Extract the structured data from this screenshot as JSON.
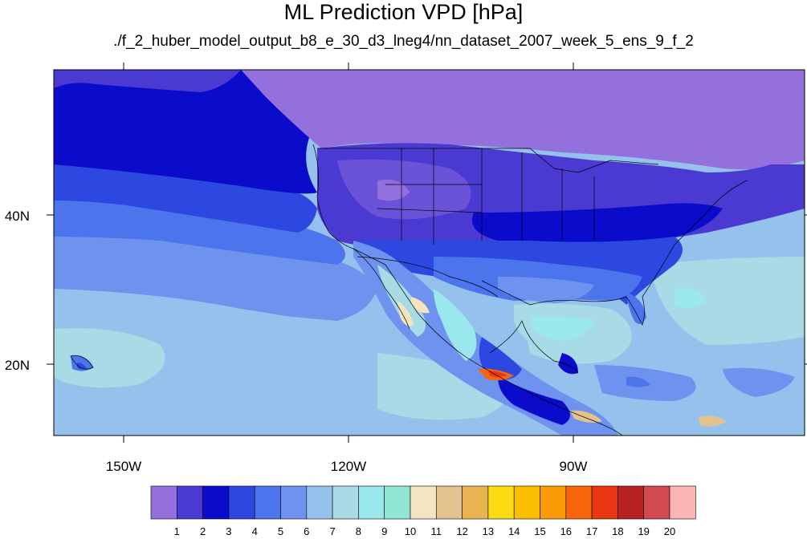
{
  "title": "ML Prediction VPD [hPa]",
  "subtitle": "./f_2_huber_model_output_b8_e_30_d3_lneg4/nn_dataset_2007_week_5_ens_9_f_2",
  "map": {
    "lon_labels": [
      "150W",
      "120W",
      "90W"
    ],
    "lat_labels": [
      "40N",
      "20N"
    ]
  },
  "colorbar": {
    "labels": [
      "1",
      "2",
      "3",
      "4",
      "5",
      "6",
      "7",
      "8",
      "9",
      "10",
      "11",
      "12",
      "13",
      "14",
      "15",
      "16",
      "17",
      "18",
      "19",
      "20"
    ],
    "colors": [
      "#9370db",
      "#4b3ad1",
      "#0b0bcb",
      "#2c48e0",
      "#4c74ec",
      "#6e93ef",
      "#94c2ec",
      "#a8dbe6",
      "#9ae8ee",
      "#8fe6d5",
      "#f3e5c1",
      "#e3c28e",
      "#e8b452",
      "#fadb14",
      "#fbbf00",
      "#fb9a08",
      "#f8650a",
      "#e83712",
      "#b82222",
      "#d04a4f",
      "#fbb5b5"
    ]
  },
  "colors": {
    "ocean_deep": "#94c2ec",
    "ocean_mid": "#6e93ef",
    "north_land": "#9370db"
  }
}
